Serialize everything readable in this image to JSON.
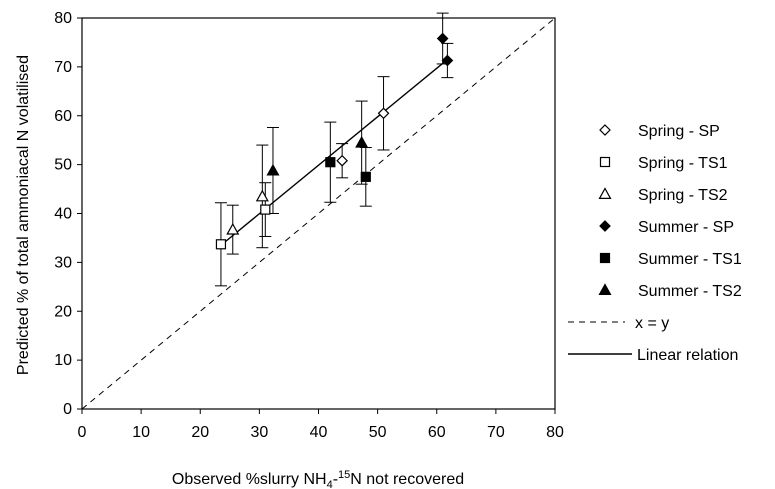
{
  "chart_data": {
    "type": "scatter",
    "xlabel": "Observed %slurry NH4-15N not recovered",
    "xlabel_parts": {
      "pre": "Observed %slurry NH",
      "sub": "4",
      "dash": "-",
      "sup": "15",
      "post": "N not recovered"
    },
    "ylabel": "Predicted % of total ammoniacal N volatilised",
    "xlim": [
      0,
      80
    ],
    "ylim": [
      0,
      80
    ],
    "xticks": [
      0,
      10,
      20,
      30,
      40,
      50,
      60,
      70,
      80
    ],
    "yticks": [
      0,
      10,
      20,
      30,
      40,
      50,
      60,
      70,
      80
    ],
    "grid": false,
    "legend_position": "right",
    "series": [
      {
        "name": "Spring - SP",
        "marker": "diamond",
        "filled": false,
        "points": [
          {
            "x": 44,
            "y": 50.8,
            "err": 3.5
          },
          {
            "x": 51,
            "y": 60.5,
            "err": 7.5
          }
        ]
      },
      {
        "name": "Spring - TS1",
        "marker": "square",
        "filled": false,
        "points": [
          {
            "x": 23.5,
            "y": 33.7,
            "err": 8.5
          },
          {
            "x": 31,
            "y": 40.8,
            "err": 5.5
          }
        ]
      },
      {
        "name": "Spring - TS2",
        "marker": "triangle",
        "filled": false,
        "points": [
          {
            "x": 25.5,
            "y": 36.7,
            "err": 5
          },
          {
            "x": 30.5,
            "y": 43.5,
            "err": 10.5
          }
        ]
      },
      {
        "name": "Summer - SP",
        "marker": "diamond",
        "filled": true,
        "points": [
          {
            "x": 61,
            "y": 75.8,
            "err": 5.2
          },
          {
            "x": 61.8,
            "y": 71.3,
            "err": 3.5
          }
        ]
      },
      {
        "name": "Summer - TS1",
        "marker": "square",
        "filled": true,
        "points": [
          {
            "x": 42,
            "y": 50.5,
            "err": 8.2
          },
          {
            "x": 48,
            "y": 47.5,
            "err": 6
          }
        ]
      },
      {
        "name": "Summer - TS2",
        "marker": "triangle",
        "filled": true,
        "points": [
          {
            "x": 32.3,
            "y": 48.8,
            "err": 8.8
          },
          {
            "x": 47.3,
            "y": 54.5,
            "err": 8.5
          }
        ]
      }
    ],
    "reference_line": {
      "name": "x = y",
      "from": [
        0,
        0
      ],
      "to": [
        80,
        80
      ],
      "style": "dashed"
    },
    "fit_line": {
      "name": "Linear relation",
      "from": [
        23.5,
        33.5
      ],
      "to": [
        62,
        71.7
      ],
      "style": "solid"
    }
  }
}
